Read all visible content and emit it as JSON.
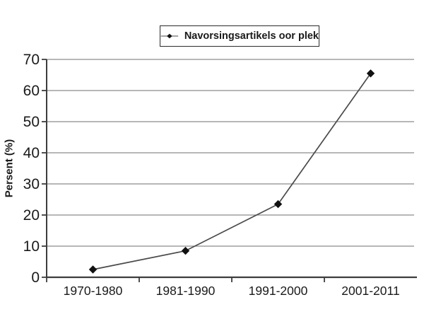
{
  "legend": {
    "label": "Navorsingsartikels oor plek"
  },
  "y_axis_title": "Persent (%)",
  "chart_data": {
    "type": "line",
    "title": "",
    "categories": [
      "1970-1980",
      "1981-1990",
      "1991-2000",
      "2001-2011"
    ],
    "series": [
      {
        "name": "Navorsingsartikels oor plek",
        "values": [
          2.5,
          8.5,
          23.5,
          65.5
        ],
        "marker": "diamond"
      }
    ],
    "xlabel": "",
    "ylabel": "Persent (%)",
    "ylim": [
      0,
      70
    ],
    "yticks": [
      0,
      10,
      20,
      30,
      40,
      50,
      60,
      70
    ],
    "grid": "horizontal",
    "legend_position": "top-center"
  },
  "colors": {
    "background": "#ffffff",
    "gridline": "#8c8c8c",
    "axis": "#3d3d3d",
    "series_line": "#4a4a4a",
    "marker_fill": "#111111",
    "text": "#1a1a1a",
    "legend_border": "#2b2b2b"
  }
}
